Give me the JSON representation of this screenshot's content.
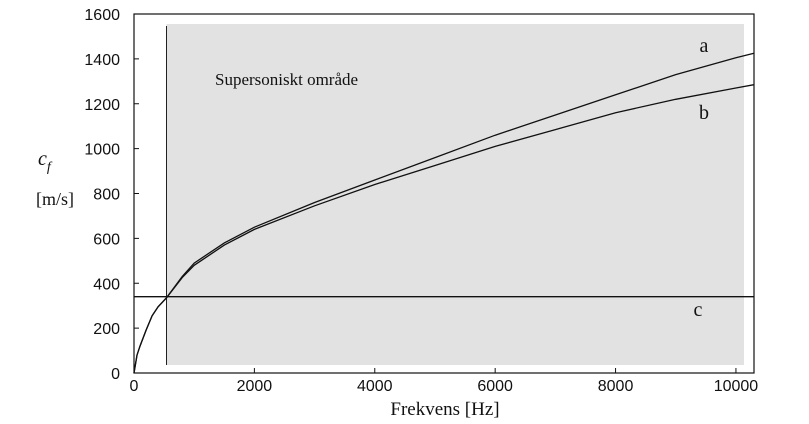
{
  "chart_data": {
    "type": "line",
    "ylabel_symbol": "c",
    "ylabel_subscript": "f",
    "ylabel_unit": "[m/s]",
    "xlabel": "Frekvens [Hz]",
    "xlim": [
      0,
      10300
    ],
    "ylim": [
      0,
      1600
    ],
    "xticks": [
      "0",
      "2000",
      "4000",
      "6000",
      "8000",
      "10000"
    ],
    "yticks": [
      "0",
      "200",
      "400",
      "600",
      "800",
      "1000",
      "1200",
      "1400",
      "1600"
    ],
    "region_label": "Supersoniskt område",
    "region_start_x": 540,
    "region_fill": "#e2e2e2",
    "series": [
      {
        "name": "a",
        "x": [
          0,
          50,
          100,
          200,
          300,
          400,
          540,
          800,
          1000,
          1500,
          2000,
          3000,
          4000,
          5000,
          6000,
          7000,
          8000,
          9000,
          10000,
          10300
        ],
        "y": [
          0,
          80,
          120,
          190,
          255,
          295,
          335,
          430,
          490,
          580,
          650,
          760,
          860,
          960,
          1060,
          1150,
          1240,
          1330,
          1405,
          1425
        ]
      },
      {
        "name": "b",
        "x": [
          0,
          50,
          100,
          200,
          300,
          400,
          540,
          800,
          1000,
          1500,
          2000,
          3000,
          4000,
          5000,
          6000,
          7000,
          8000,
          9000,
          10000,
          10300
        ],
        "y": [
          0,
          80,
          120,
          190,
          255,
          295,
          335,
          425,
          480,
          570,
          640,
          745,
          840,
          925,
          1010,
          1085,
          1160,
          1220,
          1270,
          1285
        ]
      },
      {
        "name": "c",
        "x": [
          0,
          10300
        ],
        "y": [
          340,
          340
        ]
      }
    ]
  }
}
